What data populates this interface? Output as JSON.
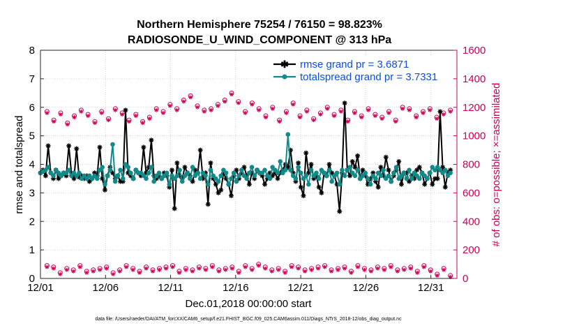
{
  "chart_data": {
    "type": "line",
    "title_line1": "Northern Hemisphere 75254 / 76150 = 98.823%",
    "title_line2": "RADIOSONDE_U_WIND_COMPONENT @ 313 hPa",
    "xlabel": "Dec.01,2018 00:00:00 start",
    "ylabel_left": "rmse and totalspread",
    "ylabel_right": "# of obs: o=possible; ×=assimilated",
    "footnote": "data file: /Users/raeder/DAI/ATM_forcXX/CAM6_setup/f.e21.FHIST_BGC.f09_025.CAM6assim.011/Diags_NTrS_2018-12/obs_diag_output.nc",
    "xlim": [
      0,
      32
    ],
    "x_ticks": [
      0,
      5,
      10,
      15,
      20,
      25,
      30
    ],
    "x_tick_labels": [
      "12/01",
      "12/06",
      "12/11",
      "12/16",
      "12/21",
      "12/26",
      "12/31"
    ],
    "ylim_left": [
      0,
      8
    ],
    "y_ticks_left": [
      "0",
      "1",
      "2",
      "3",
      "4",
      "5",
      "6",
      "7",
      "8"
    ],
    "ylim_right": [
      0,
      1600
    ],
    "y_ticks_right": [
      "0",
      "200",
      "400",
      "600",
      "800",
      "1000",
      "1200",
      "1400",
      "1600"
    ],
    "colors": {
      "rmse": "#000000",
      "spread": "#138a8a",
      "obs": "#cc0055",
      "legend_text": "#0a4fe0"
    },
    "series": [
      {
        "name": "rmse grand pr = 3.6871",
        "key": "rmse",
        "values": [
          3.7,
          3.8,
          3.6,
          4.65,
          3.7,
          3.5,
          3.8,
          3.5,
          3.6,
          3.7,
          3.6,
          4.65,
          3.7,
          3.5,
          4.55,
          3.55,
          3.6,
          3.5,
          3.6,
          3.4,
          3.5,
          3.7,
          3.6,
          4.6,
          3.5,
          3.1,
          3.6,
          3.9,
          3.7,
          3.5,
          3.6,
          3.4,
          3.4,
          5.9,
          3.7,
          3.6,
          3.5,
          3.8,
          3.7,
          3.6,
          4.6,
          3.7,
          3.9,
          4.85,
          3.6,
          3.5,
          3.6,
          3.5,
          3.7,
          3.6,
          3.2,
          3.8,
          2.45,
          4.05,
          3.6,
          3.5,
          3.9,
          3.7,
          3.6,
          3.4,
          3.8,
          3.7,
          4.5,
          3.5,
          3.7,
          2.6,
          4.05,
          3.5,
          3.3,
          3.0,
          3.1,
          3.7,
          3.5,
          3.3,
          2.9,
          3.6,
          3.8,
          3.5,
          3.7,
          3.9,
          3.6,
          3.3,
          3.7,
          3.5,
          3.8,
          3.7,
          3.6,
          3.3,
          3.5,
          3.7,
          3.6,
          3.7,
          3.5,
          3.7,
          3.8,
          4.0,
          3.9,
          4.5,
          3.7,
          3.4,
          4.05,
          3.2,
          2.9,
          4.4,
          3.7,
          4.0,
          3.5,
          3.6,
          3.2,
          3.0,
          3.7,
          3.6,
          4.0,
          3.7,
          3.6,
          3.3,
          2.35,
          3.7,
          6.15,
          3.8,
          3.6,
          4.1,
          3.9,
          4.3,
          3.5,
          3.8,
          3.6,
          3.3,
          3.5,
          3.7,
          3.4,
          3.2,
          3.9,
          3.6,
          4.25,
          3.8,
          3.4,
          3.6,
          3.8,
          4.1,
          3.3,
          3.7,
          3.7,
          3.4,
          3.6,
          3.5,
          3.8,
          3.9,
          3.7,
          3.3,
          3.5,
          3.7,
          3.3,
          3.5,
          3.5,
          5.85,
          3.9,
          3.2,
          3.7,
          3.8
        ]
      },
      {
        "name": "totalspread grand pr = 3.7331",
        "key": "spread",
        "values": [
          3.7,
          3.75,
          3.8,
          3.9,
          3.7,
          3.6,
          3.8,
          3.7,
          3.6,
          3.7,
          3.7,
          3.8,
          3.6,
          3.7,
          3.6,
          3.7,
          3.5,
          3.6,
          3.5,
          3.6,
          3.5,
          3.6,
          3.5,
          3.8,
          3.9,
          3.3,
          3.6,
          3.8,
          4.7,
          3.4,
          3.6,
          3.8,
          3.5,
          4.0,
          3.9,
          3.7,
          3.5,
          3.8,
          3.7,
          3.7,
          3.6,
          3.5,
          3.7,
          3.9,
          3.4,
          3.6,
          3.7,
          3.5,
          3.6,
          3.7,
          3.3,
          3.6,
          3.5,
          3.6,
          3.8,
          3.4,
          3.6,
          3.7,
          3.5,
          3.9,
          3.6,
          3.7,
          3.5,
          3.7,
          3.6,
          3.3,
          3.8,
          3.6,
          3.5,
          3.4,
          3.6,
          3.8,
          3.7,
          3.3,
          3.5,
          3.7,
          3.4,
          3.6,
          3.8,
          3.6,
          3.5,
          3.7,
          3.9,
          3.6,
          3.8,
          3.7,
          3.7,
          3.8,
          3.6,
          3.5,
          3.9,
          3.8,
          3.7,
          4.1,
          3.7,
          3.8,
          5.05,
          3.8,
          3.6,
          3.5,
          3.9,
          3.7,
          3.5,
          3.6,
          3.3,
          3.8,
          3.6,
          3.7,
          3.5,
          3.8,
          3.7,
          3.6,
          3.8,
          3.4,
          3.6,
          3.7,
          3.3,
          3.8,
          3.6,
          3.8,
          3.9,
          3.7,
          3.6,
          3.8,
          3.5,
          3.6,
          3.7,
          3.5,
          3.3,
          3.6,
          3.5,
          3.7,
          3.6,
          3.8,
          3.5,
          3.6,
          3.4,
          3.7,
          3.9,
          3.5,
          3.6,
          3.7,
          3.5,
          3.8,
          3.5,
          3.7,
          3.6,
          3.5,
          3.7,
          3.6,
          3.5,
          3.7,
          3.9,
          3.8,
          3.9,
          3.8,
          3.7,
          3.8,
          3.6,
          3.7
        ]
      }
    ],
    "obs_assimilated": {
      "peak_values": [
        1160,
        1100,
        1150,
        1080,
        1130,
        1170,
        1140,
        1090,
        1160,
        1110,
        1180,
        1150,
        1100,
        1140,
        1090,
        1120,
        1180,
        1160,
        1210,
        1180,
        1240,
        1270,
        1200,
        1170,
        1180,
        1210,
        1240,
        1290,
        1230,
        1160,
        1220,
        1180,
        1130,
        1190,
        1100,
        1160,
        1220,
        1130,
        1170,
        1110,
        1150,
        1190,
        1140,
        1170,
        1100,
        1160,
        1130,
        1180,
        1140,
        1120,
        1160,
        1100,
        1190,
        1180,
        1130,
        1160,
        1180,
        1120,
        1150,
        1170
      ],
      "trough_values": [
        80,
        70,
        30,
        60,
        50,
        80,
        40,
        50,
        60,
        70,
        30,
        50,
        80,
        60,
        40,
        70,
        50,
        60,
        70,
        80,
        40,
        60,
        50,
        70,
        60,
        80,
        50,
        60,
        70,
        40,
        80,
        60,
        90,
        70,
        50,
        60,
        40,
        80,
        70,
        50,
        60,
        70,
        80,
        50,
        60,
        70,
        40,
        80,
        60,
        50,
        70,
        60,
        80,
        50,
        60,
        70,
        40,
        80,
        50,
        20,
        60,
        10
      ]
    },
    "obs_possible": {
      "peak_values": [
        1170,
        1110,
        1160,
        1090,
        1140,
        1180,
        1150,
        1100,
        1170,
        1120,
        1190,
        1160,
        1110,
        1150,
        1100,
        1130,
        1190,
        1170,
        1220,
        1190,
        1250,
        1280,
        1210,
        1180,
        1190,
        1220,
        1250,
        1300,
        1240,
        1170,
        1230,
        1190,
        1140,
        1200,
        1110,
        1170,
        1230,
        1140,
        1180,
        1120,
        1160,
        1200,
        1150,
        1180,
        1110,
        1170,
        1140,
        1190,
        1150,
        1130,
        1170,
        1110,
        1200,
        1190,
        1140,
        1170,
        1190,
        1130,
        1160,
        1180
      ],
      "trough_values": [
        90,
        80,
        40,
        70,
        60,
        90,
        50,
        60,
        70,
        80,
        40,
        60,
        90,
        70,
        50,
        80,
        60,
        70,
        80,
        90,
        50,
        70,
        60,
        80,
        70,
        90,
        60,
        70,
        80,
        50,
        90,
        70,
        100,
        80,
        60,
        70,
        50,
        90,
        80,
        60,
        70,
        80,
        90,
        60,
        70,
        80,
        50,
        90,
        70,
        60,
        80,
        70,
        90,
        60,
        70,
        80,
        50,
        90,
        60,
        30,
        70,
        20
      ]
    },
    "legend": [
      {
        "label": "rmse grand pr = 3.6871",
        "key": "rmse"
      },
      {
        "label": "totalspread grand pr = 3.7331",
        "key": "spread"
      }
    ]
  }
}
